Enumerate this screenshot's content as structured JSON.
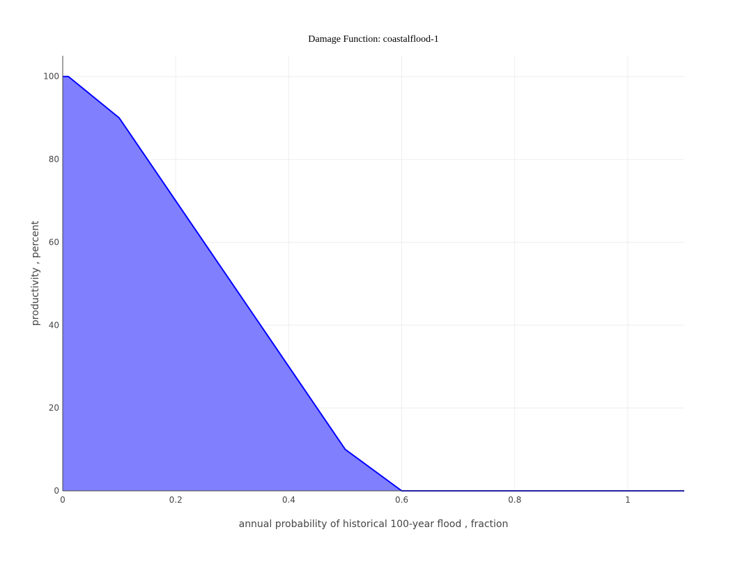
{
  "chart_data": {
    "type": "area",
    "title": "Damage Function: coastalflood-1",
    "xlabel": "annual probability of historical 100-year flood , fraction",
    "ylabel": "productivity , percent",
    "xlim": [
      0,
      1.1
    ],
    "ylim": [
      0,
      105
    ],
    "x_ticks": [
      0,
      0.2,
      0.4,
      0.6,
      0.8,
      1
    ],
    "x_tick_labels": [
      "0",
      "0.2",
      "0.4",
      "0.6",
      "0.8",
      "1"
    ],
    "y_ticks": [
      0,
      20,
      40,
      60,
      80,
      100
    ],
    "y_tick_labels": [
      "0",
      "20",
      "40",
      "60",
      "80",
      "100"
    ],
    "grid": true,
    "legend": "none",
    "series": [
      {
        "x": [
          0,
          0.01,
          0.1,
          0.5,
          0.6,
          1.1
        ],
        "y": [
          100,
          100,
          90,
          10,
          0,
          0
        ],
        "line_color": "#0000ff",
        "fill_color": "#8080ff"
      }
    ]
  }
}
